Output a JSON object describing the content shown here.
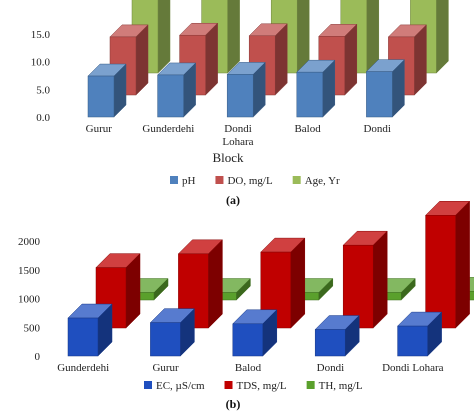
{
  "chart_data": [
    {
      "type": "bar",
      "panel_label": "(a)",
      "xlabel": "Block",
      "ylabel": "",
      "ylim": [
        0,
        15
      ],
      "yticks": [
        "0.0",
        "5.0",
        "10.0",
        "15.0"
      ],
      "categories": [
        "Gurur",
        "Gunderdehi",
        "Dondi Lohara",
        "Balod",
        "Dondi"
      ],
      "series": [
        {
          "name": "pH",
          "color": "#4f81bd",
          "values": [
            7.4,
            7.6,
            7.7,
            8.1,
            8.2
          ]
        },
        {
          "name": "DO, mg/L",
          "color": "#c0504d",
          "values": [
            10.5,
            10.8,
            10.7,
            10.6,
            10.5
          ]
        },
        {
          "name": "Age, Yr",
          "color": "#9bbb59",
          "values": [
            15,
            15,
            15,
            15,
            16
          ]
        }
      ],
      "legend": "bottom",
      "grid": false
    },
    {
      "type": "bar",
      "panel_label": "(b)",
      "xlabel": "",
      "ylabel": "",
      "ylim": [
        0,
        2000
      ],
      "yticks": [
        "0",
        "500",
        "1000",
        "1500",
        "2000"
      ],
      "categories": [
        "Gunderdehi",
        "Gurur",
        "Balod",
        "Dondi",
        "Dondi Lohara"
      ],
      "series": [
        {
          "name": "EC, µS/cm",
          "color": "#1f4fbf",
          "values": [
            660,
            580,
            560,
            460,
            520
          ]
        },
        {
          "name": "TDS, mg/L",
          "color": "#c00000",
          "values": [
            1050,
            1290,
            1320,
            1440,
            1960
          ]
        },
        {
          "name": "TH, mg/L",
          "color": "#5aa02c",
          "values": [
            130,
            130,
            130,
            130,
            150
          ]
        }
      ],
      "legend": "bottom",
      "grid": false
    }
  ]
}
